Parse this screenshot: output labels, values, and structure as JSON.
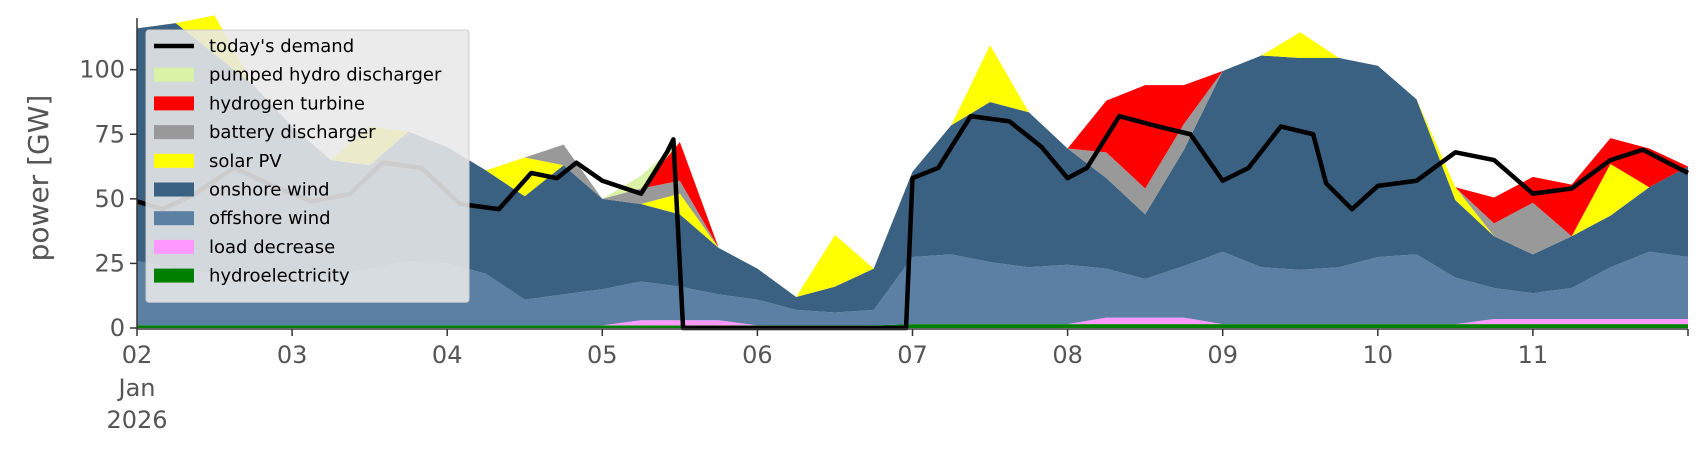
{
  "chart_data": {
    "type": "area",
    "ylabel": "power [GW]",
    "ylim": [
      0,
      120
    ],
    "yticks": [
      0,
      25,
      50,
      75,
      100
    ],
    "xlim": [
      "2026-01-02T00:00",
      "2026-01-12T00:00"
    ],
    "xticks": [
      {
        "date": "2026-01-02",
        "label": "02",
        "sub": [
          "Jan",
          "2026"
        ]
      },
      {
        "date": "2026-01-03",
        "label": "03"
      },
      {
        "date": "2026-01-04",
        "label": "04"
      },
      {
        "date": "2026-01-05",
        "label": "05"
      },
      {
        "date": "2026-01-06",
        "label": "06"
      },
      {
        "date": "2026-01-07",
        "label": "07"
      },
      {
        "date": "2026-01-08",
        "label": "08"
      },
      {
        "date": "2026-01-09",
        "label": "09"
      },
      {
        "date": "2026-01-10",
        "label": "10"
      },
      {
        "date": "2026-01-11",
        "label": "11"
      }
    ],
    "legend": {
      "placement": "top-left",
      "entries": [
        {
          "name": "today's demand",
          "kind": "line",
          "color": "#000000"
        },
        {
          "name": "pumped hydro discharger",
          "kind": "area",
          "color": "#d9f2a6"
        },
        {
          "name": "hydrogen turbine",
          "kind": "area",
          "color": "#ff0000"
        },
        {
          "name": "battery discharger",
          "kind": "area",
          "color": "#999999"
        },
        {
          "name": "solar PV",
          "kind": "area",
          "color": "#ffff00"
        },
        {
          "name": "onshore wind",
          "kind": "area",
          "color": "#3b6182"
        },
        {
          "name": "offshore wind",
          "kind": "area",
          "color": "#5b80a3"
        },
        {
          "name": "load decrease",
          "kind": "area",
          "color": "#ff99ff"
        },
        {
          "name": "hydroelectricity",
          "kind": "area",
          "color": "#008000"
        }
      ]
    },
    "x": [
      "2026-01-02T00:00",
      "2026-01-02T06:00",
      "2026-01-02T12:00",
      "2026-01-02T18:00",
      "2026-01-03T00:00",
      "2026-01-03T06:00",
      "2026-01-03T12:00",
      "2026-01-03T18:00",
      "2026-01-04T00:00",
      "2026-01-04T06:00",
      "2026-01-04T12:00",
      "2026-01-04T18:00",
      "2026-01-05T00:00",
      "2026-01-05T06:00",
      "2026-01-05T12:00",
      "2026-01-05T18:00",
      "2026-01-06T00:00",
      "2026-01-06T06:00",
      "2026-01-06T12:00",
      "2026-01-06T18:00",
      "2026-01-07T00:00",
      "2026-01-07T06:00",
      "2026-01-07T12:00",
      "2026-01-07T18:00",
      "2026-01-08T00:00",
      "2026-01-08T06:00",
      "2026-01-08T12:00",
      "2026-01-08T18:00",
      "2026-01-09T00:00",
      "2026-01-09T06:00",
      "2026-01-09T12:00",
      "2026-01-09T18:00",
      "2026-01-10T00:00",
      "2026-01-10T06:00",
      "2026-01-10T12:00",
      "2026-01-10T18:00",
      "2026-01-11T00:00",
      "2026-01-11T06:00",
      "2026-01-11T12:00",
      "2026-01-11T18:00",
      "2026-01-12T00:00"
    ],
    "series": [
      {
        "name": "hydroelectricity",
        "color": "#008000",
        "values": [
          1,
          1,
          1,
          1,
          1,
          1,
          1,
          1,
          1,
          1,
          1,
          1,
          1,
          1,
          1,
          1,
          1,
          1,
          1,
          1,
          1.5,
          1.5,
          1.5,
          1.5,
          1.5,
          1.5,
          1.5,
          1.5,
          1.5,
          1.5,
          1.5,
          1.5,
          1.5,
          1.5,
          1.5,
          1.5,
          1.5,
          1.5,
          1.5,
          1.5,
          1.5
        ]
      },
      {
        "name": "load decrease",
        "color": "#ff99ff",
        "values": [
          0,
          0,
          0,
          0,
          0,
          0,
          0,
          0,
          0,
          0,
          0,
          0,
          0,
          2,
          2,
          2,
          0,
          0,
          0,
          0,
          0,
          0,
          0,
          0,
          0,
          2.5,
          2.5,
          2.5,
          0,
          0,
          0,
          0,
          0,
          0,
          0,
          2,
          2,
          2,
          2,
          2,
          2
        ]
      },
      {
        "name": "offshore wind",
        "color": "#5b80a3",
        "values": [
          25,
          22,
          20,
          18,
          17,
          19,
          22,
          25,
          24,
          20,
          10,
          12,
          14,
          15,
          13,
          10,
          10,
          6,
          5,
          6,
          26,
          27,
          24,
          22,
          23,
          19,
          15,
          20,
          28,
          22,
          21,
          22,
          26,
          27,
          18,
          12,
          10,
          12,
          20,
          26,
          24
        ]
      },
      {
        "name": "onshore wind",
        "color": "#3b6182",
        "values": [
          90,
          95,
          85,
          75,
          60,
          45,
          40,
          50,
          45,
          40,
          40,
          50,
          35,
          30,
          28,
          18,
          12,
          5,
          10,
          16,
          33,
          50,
          62,
          60,
          45,
          35,
          25,
          45,
          70,
          82,
          82,
          81,
          74,
          60,
          30,
          20,
          15,
          20,
          20,
          25,
          35
        ]
      },
      {
        "name": "solar PV",
        "color": "#ffff00",
        "values": [
          0,
          0,
          15,
          0,
          0,
          0,
          15,
          0,
          0,
          0,
          15,
          0,
          0,
          0,
          8,
          0,
          0,
          0,
          20,
          0,
          0,
          0,
          22,
          0,
          0,
          0,
          0,
          0,
          0,
          0,
          10,
          0,
          0,
          0,
          5,
          0,
          0,
          0,
          20,
          0,
          0
        ]
      },
      {
        "name": "battery discharger",
        "color": "#999999",
        "values": [
          0,
          0,
          0,
          0,
          0,
          0,
          0,
          0,
          0,
          0,
          0,
          8,
          0,
          6,
          5,
          0,
          0,
          0,
          0,
          0,
          0,
          0,
          0,
          0,
          0,
          10,
          10,
          10,
          0,
          0,
          0,
          0,
          0,
          0,
          0,
          5,
          20,
          0,
          0,
          0,
          0
        ]
      },
      {
        "name": "hydrogen turbine",
        "color": "#ff0000",
        "values": [
          0,
          0,
          0,
          0,
          0,
          0,
          0,
          0,
          0,
          0,
          0,
          0,
          0,
          0,
          15,
          0,
          0,
          0,
          0,
          0,
          0,
          0,
          0,
          0,
          0,
          20,
          40,
          15,
          0,
          0,
          0,
          0,
          0,
          0,
          0,
          10,
          10,
          20,
          10,
          15,
          0
        ]
      },
      {
        "name": "pumped hydro discharger",
        "color": "#d9f2a6",
        "values": [
          0,
          0,
          0,
          0,
          0,
          0,
          0,
          0,
          0,
          0,
          0,
          0,
          0,
          5,
          0,
          0,
          0,
          0,
          0,
          0,
          0,
          0,
          0,
          0,
          0,
          0,
          0,
          0,
          0,
          0,
          0,
          0,
          0,
          0,
          0,
          0,
          0,
          0,
          0,
          0,
          0
        ]
      }
    ],
    "demand": {
      "name": "today's demand",
      "color": "#000000",
      "x": [
        "2026-01-02T00:00",
        "2026-01-02T04:00",
        "2026-01-02T09:00",
        "2026-01-02T15:00",
        "2026-01-02T21:00",
        "2026-01-03T03:00",
        "2026-01-03T09:00",
        "2026-01-03T14:00",
        "2026-01-03T20:00",
        "2026-01-04T02:00",
        "2026-01-04T08:00",
        "2026-01-04T13:00",
        "2026-01-04T17:00",
        "2026-01-04T20:00",
        "2026-01-05T00:00",
        "2026-01-05T06:00",
        "2026-01-05T10:00",
        "2026-01-05T11:00",
        "2026-01-05T12:30",
        "2026-01-06T23:00",
        "2026-01-07T00:00",
        "2026-01-07T04:00",
        "2026-01-07T09:00",
        "2026-01-07T15:00",
        "2026-01-07T20:00",
        "2026-01-08T00:00",
        "2026-01-08T03:00",
        "2026-01-08T08:00",
        "2026-01-08T14:00",
        "2026-01-08T19:00",
        "2026-01-09T00:00",
        "2026-01-09T04:00",
        "2026-01-09T09:00",
        "2026-01-09T14:00",
        "2026-01-09T16:00",
        "2026-01-09T20:00",
        "2026-01-10T00:00",
        "2026-01-10T06:00",
        "2026-01-10T12:00",
        "2026-01-10T18:00",
        "2026-01-11T00:00",
        "2026-01-11T06:00",
        "2026-01-11T12:00",
        "2026-01-11T17:00",
        "2026-01-12T00:00"
      ],
      "values": [
        49,
        46,
        52,
        62,
        55,
        49,
        52,
        64,
        62,
        48,
        46,
        60,
        58,
        64,
        57,
        52,
        68,
        73,
        0,
        0,
        58,
        62,
        82,
        80,
        70,
        58,
        62,
        82,
        78,
        75,
        57,
        62,
        78,
        75,
        56,
        46,
        55,
        57,
        68,
        65,
        52,
        54,
        65,
        69,
        60
      ]
    }
  }
}
